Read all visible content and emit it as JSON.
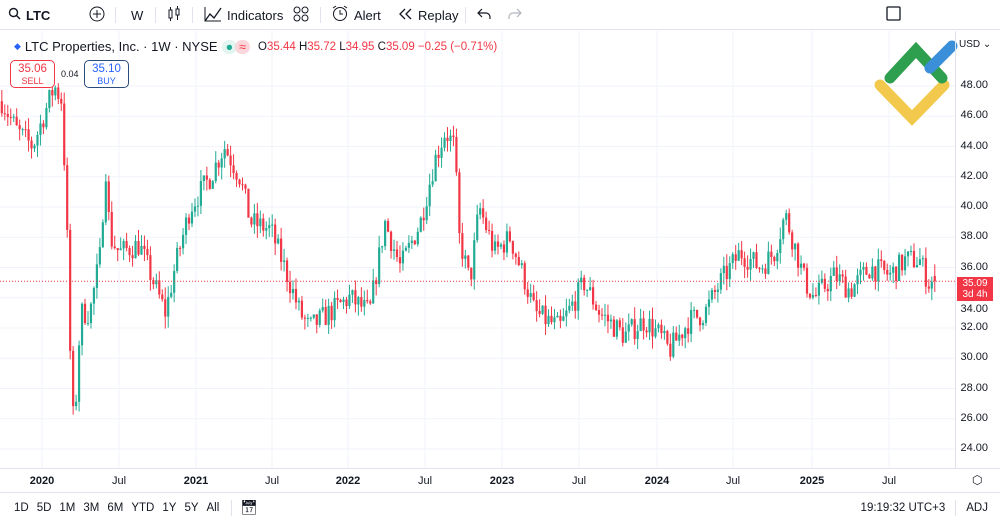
{
  "toolbar": {
    "symbol": "LTC",
    "interval": "W",
    "indicators": "Indicators",
    "alert": "Alert",
    "replay": "Replay"
  },
  "legend": {
    "title": "LTC Properties, Inc. · 1W · NYSE",
    "o_label": "O",
    "o": "35.44",
    "h_label": "H",
    "h": "35.72",
    "l_label": "L",
    "l": "34.95",
    "c_label": "C",
    "c": "35.09",
    "change": "−0.25 (−0.71%)"
  },
  "trade": {
    "sell_price": "35.06",
    "sell_label": "SELL",
    "spread": "0.04",
    "buy_price": "35.10",
    "buy_label": "BUY"
  },
  "price_axis": {
    "currency": "USD",
    "ticks": [
      "48.00",
      "46.00",
      "44.00",
      "42.00",
      "40.00",
      "38.00",
      "36.00",
      "34.00",
      "32.00",
      "30.00",
      "28.00",
      "26.00",
      "24.00"
    ],
    "current_price": "35.09",
    "countdown": "3d 4h"
  },
  "time_axis": {
    "ticks": [
      "2020",
      "Jul",
      "2021",
      "Jul",
      "2022",
      "Jul",
      "2023",
      "Jul",
      "2024",
      "Jul",
      "2025",
      "Jul"
    ]
  },
  "bottom": {
    "ranges": [
      "1D",
      "5D",
      "1M",
      "3M",
      "6M",
      "YTD",
      "1Y",
      "5Y",
      "All"
    ],
    "clock": "19:19:32 UTC+3",
    "adj": "ADJ"
  },
  "colors": {
    "up": "#22ab94",
    "down": "#f23645",
    "accent": "#2962ff"
  },
  "chart_data": {
    "type": "candlestick",
    "symbol": "LTC",
    "interval": "1W",
    "ylim": [
      23,
      50
    ],
    "xlim": [
      2019.73,
      2026.0
    ],
    "last": {
      "open": 35.44,
      "high": 35.72,
      "low": 34.95,
      "close": 35.09
    },
    "close_path": [
      [
        2019.74,
        47
      ],
      [
        2019.84,
        45
      ],
      [
        2019.94,
        44
      ],
      [
        2020.08,
        48
      ],
      [
        2020.13,
        47
      ],
      [
        2020.17,
        36
      ],
      [
        2020.19,
        27
      ],
      [
        2020.21,
        25.5
      ],
      [
        2020.25,
        33
      ],
      [
        2020.31,
        33
      ],
      [
        2020.38,
        37
      ],
      [
        2020.41,
        43
      ],
      [
        2020.44,
        38
      ],
      [
        2020.5,
        37
      ],
      [
        2020.63,
        37.5
      ],
      [
        2020.76,
        34
      ],
      [
        2020.8,
        33
      ],
      [
        2020.86,
        36
      ],
      [
        2020.96,
        40
      ],
      [
        2021.09,
        42
      ],
      [
        2021.18,
        44
      ],
      [
        2021.28,
        42
      ],
      [
        2021.35,
        39
      ],
      [
        2021.48,
        38.5
      ],
      [
        2021.57,
        36
      ],
      [
        2021.67,
        33
      ],
      [
        2021.73,
        32
      ],
      [
        2021.86,
        33
      ],
      [
        2021.99,
        34
      ],
      [
        2022.12,
        33
      ],
      [
        2022.22,
        39
      ],
      [
        2022.32,
        36
      ],
      [
        2022.45,
        39
      ],
      [
        2022.54,
        43
      ],
      [
        2022.61,
        45
      ],
      [
        2022.67,
        44
      ],
      [
        2022.7,
        38
      ],
      [
        2022.77,
        35
      ],
      [
        2022.83,
        40
      ],
      [
        2022.93,
        37
      ],
      [
        2023.03,
        38
      ],
      [
        2023.13,
        35
      ],
      [
        2023.19,
        33
      ],
      [
        2023.35,
        32
      ],
      [
        2023.51,
        35
      ],
      [
        2023.61,
        33
      ],
      [
        2023.77,
        31.5
      ],
      [
        2023.9,
        32.5
      ],
      [
        2024.0,
        31.5
      ],
      [
        2024.06,
        30.5
      ],
      [
        2024.19,
        32.5
      ],
      [
        2024.29,
        33
      ],
      [
        2024.39,
        35
      ],
      [
        2024.52,
        37
      ],
      [
        2024.65,
        36
      ],
      [
        2024.74,
        37
      ],
      [
        2024.81,
        39.5
      ],
      [
        2024.87,
        37.5
      ],
      [
        2024.94,
        35
      ],
      [
        2025.0,
        34
      ],
      [
        2025.13,
        35.5
      ],
      [
        2025.23,
        34.5
      ],
      [
        2025.36,
        36
      ],
      [
        2025.49,
        35.5
      ],
      [
        2025.59,
        36.5
      ],
      [
        2025.68,
        36.5
      ],
      [
        2025.74,
        35
      ],
      [
        2025.78,
        35.09
      ]
    ]
  }
}
